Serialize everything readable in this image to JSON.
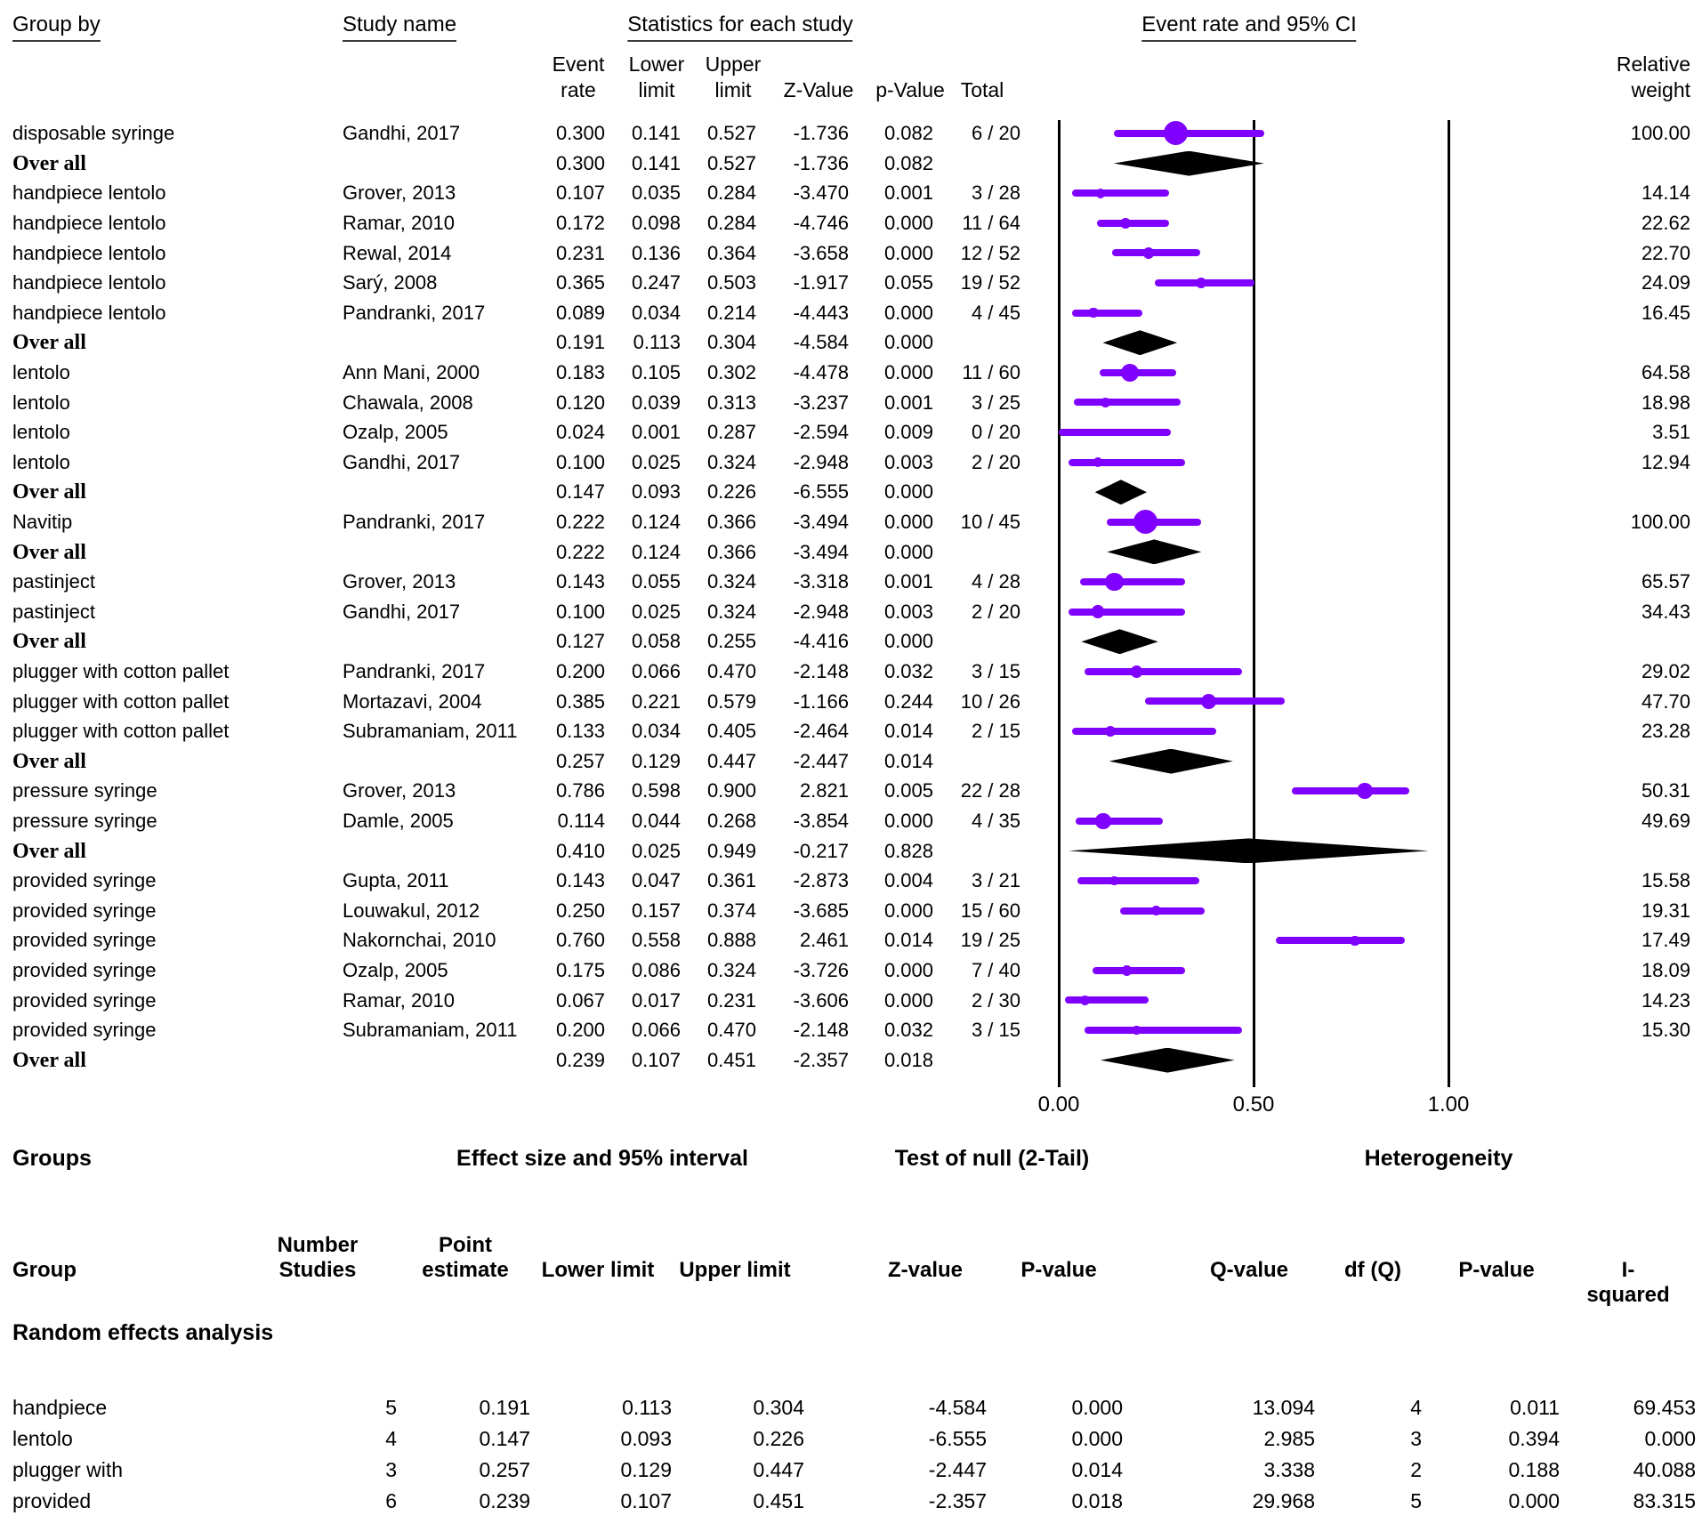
{
  "labels": {
    "group_by": "Group by",
    "study_name": "Study name",
    "stats_title": "Statistics for each study",
    "ci_title": "Event rate and 95% CI",
    "event_rate": "Event\nrate",
    "lower_limit": "Lower\nlimit",
    "upper_limit": "Upper\nlimit",
    "z_value": "Z-Value",
    "p_value": "p-Value",
    "total": "Total",
    "relative_weight": "Relative\nweight"
  },
  "figure": {
    "colors": {
      "marker": "#7F00FF",
      "diamond": "#000000",
      "axis": "#000000"
    }
  },
  "chart_data": {
    "type": "forest",
    "title": "Event rate and 95% CI",
    "x_axis": {
      "min": 0.0,
      "max": 1.0,
      "ticks": [
        {
          "label": "0.00",
          "value": 0.0
        },
        {
          "label": "0.50",
          "value": 0.5
        },
        {
          "label": "1.00",
          "value": 1.0
        }
      ]
    },
    "rows": [
      {
        "kind": "study",
        "group": "disposable syringe",
        "study": "Gandhi, 2017",
        "er": "0.300",
        "ll": "0.141",
        "ul": "0.527",
        "z": "-1.736",
        "p": "0.082",
        "total": "6 / 20",
        "weight": "100.00"
      },
      {
        "kind": "overall",
        "group": "Over all",
        "er": "0.300",
        "ll": "0.141",
        "ul": "0.527",
        "z": "-1.736",
        "p": "0.082"
      },
      {
        "kind": "study",
        "group": "handpiece lentolo",
        "study": "Grover, 2013",
        "er": "0.107",
        "ll": "0.035",
        "ul": "0.284",
        "z": "-3.470",
        "p": "0.001",
        "total": "3 / 28",
        "weight": "14.14"
      },
      {
        "kind": "study",
        "group": "handpiece lentolo",
        "study": "Ramar, 2010",
        "er": "0.172",
        "ll": "0.098",
        "ul": "0.284",
        "z": "-4.746",
        "p": "0.000",
        "total": "11 / 64",
        "weight": "22.62"
      },
      {
        "kind": "study",
        "group": "handpiece lentolo",
        "study": "Rewal, 2014",
        "er": "0.231",
        "ll": "0.136",
        "ul": "0.364",
        "z": "-3.658",
        "p": "0.000",
        "total": "12 / 52",
        "weight": "22.70"
      },
      {
        "kind": "study",
        "group": "handpiece lentolo",
        "study": "Sarý, 2008",
        "er": "0.365",
        "ll": "0.247",
        "ul": "0.503",
        "z": "-1.917",
        "p": "0.055",
        "total": "19 / 52",
        "weight": "24.09"
      },
      {
        "kind": "study",
        "group": "handpiece lentolo",
        "study": "Pandranki, 2017",
        "er": "0.089",
        "ll": "0.034",
        "ul": "0.214",
        "z": "-4.443",
        "p": "0.000",
        "total": "4 / 45",
        "weight": "16.45"
      },
      {
        "kind": "overall",
        "group": "Over all",
        "er": "0.191",
        "ll": "0.113",
        "ul": "0.304",
        "z": "-4.584",
        "p": "0.000"
      },
      {
        "kind": "study",
        "group": "lentolo",
        "study": "Ann Mani, 2000",
        "er": "0.183",
        "ll": "0.105",
        "ul": "0.302",
        "z": "-4.478",
        "p": "0.000",
        "total": "11 / 60",
        "weight": "64.58"
      },
      {
        "kind": "study",
        "group": "lentolo",
        "study": "Chawala, 2008",
        "er": "0.120",
        "ll": "0.039",
        "ul": "0.313",
        "z": "-3.237",
        "p": "0.001",
        "total": "3 / 25",
        "weight": "18.98"
      },
      {
        "kind": "study",
        "group": "lentolo",
        "study": "Ozalp, 2005",
        "er": "0.024",
        "ll": "0.001",
        "ul": "0.287",
        "z": "-2.594",
        "p": "0.009",
        "total": "0 / 20",
        "weight": "3.51"
      },
      {
        "kind": "study",
        "group": "lentolo",
        "study": "Gandhi, 2017",
        "er": "0.100",
        "ll": "0.025",
        "ul": "0.324",
        "z": "-2.948",
        "p": "0.003",
        "total": "2 / 20",
        "weight": "12.94"
      },
      {
        "kind": "overall",
        "group": "Over all",
        "er": "0.147",
        "ll": "0.093",
        "ul": "0.226",
        "z": "-6.555",
        "p": "0.000"
      },
      {
        "kind": "study",
        "group": "Navitip",
        "study": "Pandranki, 2017",
        "er": "0.222",
        "ll": "0.124",
        "ul": "0.366",
        "z": "-3.494",
        "p": "0.000",
        "total": "10 / 45",
        "weight": "100.00"
      },
      {
        "kind": "overall",
        "group": "Over all",
        "er": "0.222",
        "ll": "0.124",
        "ul": "0.366",
        "z": "-3.494",
        "p": "0.000"
      },
      {
        "kind": "study",
        "group": "pastinject",
        "study": "Grover, 2013",
        "er": "0.143",
        "ll": "0.055",
        "ul": "0.324",
        "z": "-3.318",
        "p": "0.001",
        "total": "4 / 28",
        "weight": "65.57"
      },
      {
        "kind": "study",
        "group": "pastinject",
        "study": "Gandhi, 2017",
        "er": "0.100",
        "ll": "0.025",
        "ul": "0.324",
        "z": "-2.948",
        "p": "0.003",
        "total": "2 / 20",
        "weight": "34.43"
      },
      {
        "kind": "overall",
        "group": "Over all",
        "er": "0.127",
        "ll": "0.058",
        "ul": "0.255",
        "z": "-4.416",
        "p": "0.000"
      },
      {
        "kind": "study",
        "group": "plugger with cotton pallet",
        "study": "Pandranki, 2017",
        "er": "0.200",
        "ll": "0.066",
        "ul": "0.470",
        "z": "-2.148",
        "p": "0.032",
        "total": "3 / 15",
        "weight": "29.02"
      },
      {
        "kind": "study",
        "group": "plugger with cotton pallet",
        "study": "Mortazavi, 2004",
        "er": "0.385",
        "ll": "0.221",
        "ul": "0.579",
        "z": "-1.166",
        "p": "0.244",
        "total": "10 / 26",
        "weight": "47.70"
      },
      {
        "kind": "study",
        "group": "plugger with cotton pallet",
        "study": "Subramaniam, 2011",
        "er": "0.133",
        "ll": "0.034",
        "ul": "0.405",
        "z": "-2.464",
        "p": "0.014",
        "total": "2 / 15",
        "weight": "23.28"
      },
      {
        "kind": "overall",
        "group": "Over all",
        "er": "0.257",
        "ll": "0.129",
        "ul": "0.447",
        "z": "-2.447",
        "p": "0.014"
      },
      {
        "kind": "study",
        "group": "pressure syringe",
        "study": "Grover, 2013",
        "er": "0.786",
        "ll": "0.598",
        "ul": "0.900",
        "z": "2.821",
        "p": "0.005",
        "total": "22 / 28",
        "weight": "50.31"
      },
      {
        "kind": "study",
        "group": "pressure syringe",
        "study": "Damle, 2005",
        "er": "0.114",
        "ll": "0.044",
        "ul": "0.268",
        "z": "-3.854",
        "p": "0.000",
        "total": "4 / 35",
        "weight": "49.69"
      },
      {
        "kind": "overall",
        "group": "Over all",
        "er": "0.410",
        "ll": "0.025",
        "ul": "0.949",
        "z": "-0.217",
        "p": "0.828"
      },
      {
        "kind": "study",
        "group": "provided syringe",
        "study": "Gupta, 2011",
        "er": "0.143",
        "ll": "0.047",
        "ul": "0.361",
        "z": "-2.873",
        "p": "0.004",
        "total": "3 / 21",
        "weight": "15.58"
      },
      {
        "kind": "study",
        "group": "provided syringe",
        "study": "Louwakul, 2012",
        "er": "0.250",
        "ll": "0.157",
        "ul": "0.374",
        "z": "-3.685",
        "p": "0.000",
        "total": "15 / 60",
        "weight": "19.31"
      },
      {
        "kind": "study",
        "group": "provided syringe",
        "study": "Nakornchai, 2010",
        "er": "0.760",
        "ll": "0.558",
        "ul": "0.888",
        "z": "2.461",
        "p": "0.014",
        "total": "19 / 25",
        "weight": "17.49"
      },
      {
        "kind": "study",
        "group": "provided syringe",
        "study": "Ozalp, 2005",
        "er": "0.175",
        "ll": "0.086",
        "ul": "0.324",
        "z": "-3.726",
        "p": "0.000",
        "total": "7 / 40",
        "weight": "18.09"
      },
      {
        "kind": "study",
        "group": "provided syringe",
        "study": "Ramar, 2010",
        "er": "0.067",
        "ll": "0.017",
        "ul": "0.231",
        "z": "-3.606",
        "p": "0.000",
        "total": "2 / 30",
        "weight": "14.23"
      },
      {
        "kind": "study",
        "group": "provided syringe",
        "study": "Subramaniam, 2011",
        "er": "0.200",
        "ll": "0.066",
        "ul": "0.470",
        "z": "-2.148",
        "p": "0.032",
        "total": "3 / 15",
        "weight": "15.30"
      },
      {
        "kind": "overall",
        "group": "Over all",
        "er": "0.239",
        "ll": "0.107",
        "ul": "0.451",
        "z": "-2.357",
        "p": "0.018"
      }
    ],
    "summary": {
      "titles": {
        "groups": "Groups",
        "effect": "Effect size and 95% interval",
        "test": "Test of null (2-Tail)",
        "heterogeneity": "Heterogeneity"
      },
      "headers": [
        "Group",
        "Number\nStudies",
        "Point\nestimate",
        "Lower limit",
        "Upper limit",
        "Z-value",
        "P-value",
        "Q-value",
        "df (Q)",
        "P-value",
        "I-squared"
      ],
      "section_label": "Random effects analysis",
      "rows": [
        {
          "group": "handpiece",
          "n": "5",
          "point": "0.191",
          "lower": "0.113",
          "upper": "0.304",
          "z": "-4.584",
          "p": "0.000",
          "q": "13.094",
          "df": "4",
          "p2": "0.011",
          "i2": "69.453"
        },
        {
          "group": "lentolo",
          "n": "4",
          "point": "0.147",
          "lower": "0.093",
          "upper": "0.226",
          "z": "-6.555",
          "p": "0.000",
          "q": "2.985",
          "df": "3",
          "p2": "0.394",
          "i2": "0.000"
        },
        {
          "group": "plugger with",
          "n": "3",
          "point": "0.257",
          "lower": "0.129",
          "upper": "0.447",
          "z": "-2.447",
          "p": "0.014",
          "q": "3.338",
          "df": "2",
          "p2": "0.188",
          "i2": "40.088"
        },
        {
          "group": "provided",
          "n": "6",
          "point": "0.239",
          "lower": "0.107",
          "upper": "0.451",
          "z": "-2.357",
          "p": "0.018",
          "q": "29.968",
          "df": "5",
          "p2": "0.000",
          "i2": "83.315"
        }
      ]
    }
  }
}
